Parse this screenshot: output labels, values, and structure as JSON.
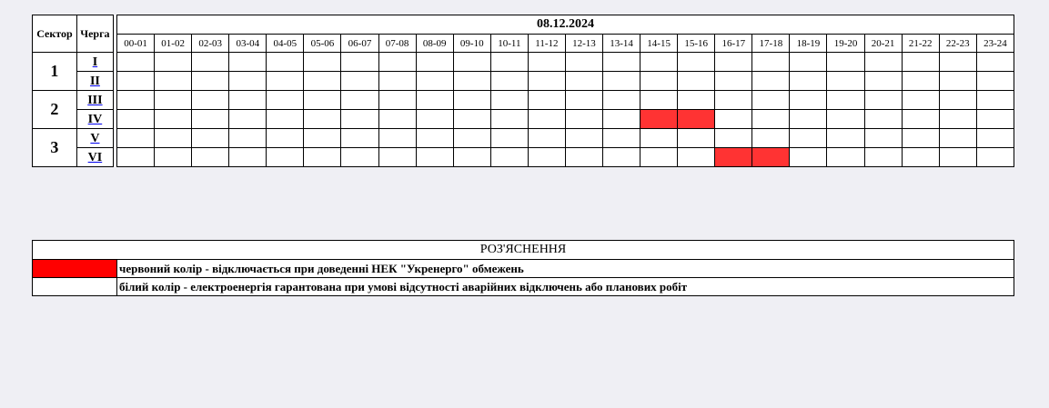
{
  "schedule": {
    "sector_header": "Сектор",
    "queue_header": "Черга",
    "date": "08.12.2024",
    "hours": [
      "00-01",
      "01-02",
      "02-03",
      "03-04",
      "04-05",
      "05-06",
      "06-07",
      "07-08",
      "08-09",
      "09-10",
      "10-11",
      "11-12",
      "12-13",
      "13-14",
      "14-15",
      "15-16",
      "16-17",
      "17-18",
      "18-19",
      "19-20",
      "20-21",
      "21-22",
      "22-23",
      "23-24"
    ],
    "sectors": [
      {
        "label": "1",
        "queues": [
          "I",
          "II"
        ]
      },
      {
        "label": "2",
        "queues": [
          "III",
          "IV"
        ]
      },
      {
        "label": "3",
        "queues": [
          "V",
          "VI"
        ]
      }
    ],
    "outages": {
      "I": [],
      "II": [],
      "III": [],
      "IV": [
        "14-15",
        "15-16"
      ],
      "V": [],
      "VI": [
        "16-17",
        "17-18"
      ]
    },
    "outage_color": "#ff3333"
  },
  "legend": {
    "title": "РОЗ'ЯСНЕННЯ",
    "items": [
      {
        "color": "#ff0000",
        "text": "червоний колір - відключається при доведенні НЕК \"Укренерго\" обмежень"
      },
      {
        "color": "#ffffff",
        "text": "білий колір - електроенергія гарантована при умові відсутності аварійних відключень або планових робіт"
      }
    ]
  }
}
